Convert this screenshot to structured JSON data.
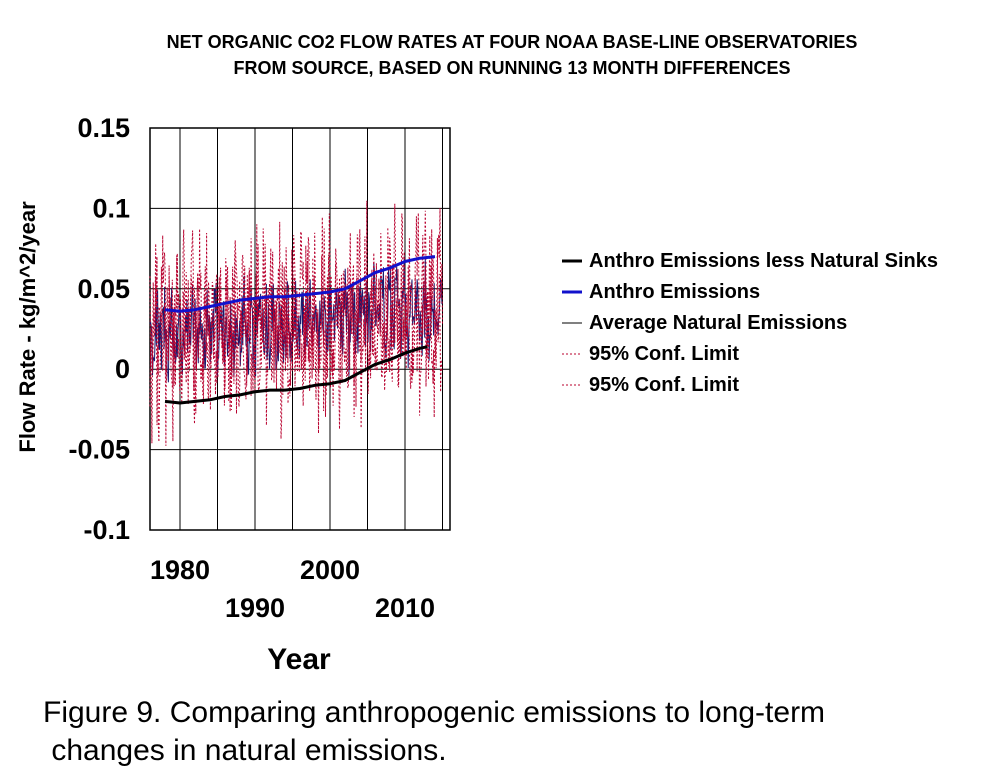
{
  "chart_data": {
    "type": "line",
    "title": [
      "NET ORGANIC CO2 FLOW RATES AT FOUR NOAA BASE-LINE OBSERVATORIES",
      "FROM SOURCE, BASED ON RUNNING 13 MONTH DIFFERENCES"
    ],
    "xlabel": "Year",
    "ylabel": "Flow Rate - kg/m^2/year",
    "xlim": [
      1976,
      2016
    ],
    "ylim": [
      -0.1,
      0.15
    ],
    "yticks": [
      -0.1,
      -0.05,
      0,
      0.05,
      0.1,
      0.15
    ],
    "ytick_labels": [
      "-0.1",
      "-0.05",
      "0",
      "0.05",
      "0.1",
      "0.15"
    ],
    "xticks_top": [
      {
        "value": 1980,
        "label": "1980"
      },
      {
        "value": 2000,
        "label": "2000"
      }
    ],
    "xticks_bottom": [
      {
        "value": 1990,
        "label": "1990"
      },
      {
        "value": 2010,
        "label": "2010"
      }
    ],
    "grid": true,
    "legend_position": "right",
    "series": [
      {
        "name": "Anthro Emissions less Natural Sinks",
        "color": "#000000",
        "style": "solid-thick",
        "x": [
          1978,
          1980,
          1982,
          1984,
          1986,
          1988,
          1990,
          1992,
          1994,
          1996,
          1998,
          2000,
          2002,
          2004,
          2006,
          2008,
          2010,
          2012,
          2013
        ],
        "y": [
          -0.02,
          -0.021,
          -0.02,
          -0.019,
          -0.017,
          -0.016,
          -0.014,
          -0.013,
          -0.013,
          -0.012,
          -0.01,
          -0.009,
          -0.007,
          -0.002,
          0.003,
          0.006,
          0.01,
          0.013,
          0.014
        ]
      },
      {
        "name": "Anthro Emissions",
        "color": "#1111cc",
        "style": "solid-thick",
        "x": [
          1978,
          1980,
          1982,
          1984,
          1986,
          1988,
          1990,
          1992,
          1994,
          1996,
          1998,
          2000,
          2002,
          2004,
          2006,
          2008,
          2010,
          2012,
          2014
        ],
        "y": [
          0.037,
          0.036,
          0.037,
          0.039,
          0.041,
          0.043,
          0.044,
          0.045,
          0.045,
          0.046,
          0.047,
          0.048,
          0.05,
          0.055,
          0.06,
          0.063,
          0.067,
          0.069,
          0.07
        ]
      },
      {
        "name": "Average Natural Emissions",
        "color": "#1a1a6e",
        "style": "thin-noisy",
        "x_range": [
          1976,
          2015
        ],
        "mean": 0.02,
        "amplitude": 0.035
      },
      {
        "name": "95% Conf. Limit",
        "color": "#b8002e",
        "style": "dotted-noisy",
        "x_range": [
          1976,
          2015
        ],
        "mean": 0.03,
        "amplitude": 0.06
      },
      {
        "name": "95% Conf. Limit",
        "color": "#b8002e",
        "style": "dotted-noisy",
        "x_range": [
          1976,
          2015
        ],
        "mean": 0.01,
        "amplitude": 0.06
      }
    ]
  },
  "legend": [
    {
      "label": "Anthro Emissions less Natural Sinks",
      "color": "#000000",
      "style": "solid-thick"
    },
    {
      "label": "Anthro Emissions",
      "color": "#1111cc",
      "style": "solid-thick"
    },
    {
      "label": " Average Natural Emissions",
      "color": "#000000",
      "style": "solid-thin"
    },
    {
      "label": "95% Conf. Limit",
      "color": "#b8002e",
      "style": "dotted"
    },
    {
      "label": "95% Conf. Limit",
      "color": "#b8002e",
      "style": "dotted"
    }
  ],
  "caption": [
    "Figure 9. Comparing anthropogenic emissions to long-term",
    " changes in natural emissions."
  ]
}
